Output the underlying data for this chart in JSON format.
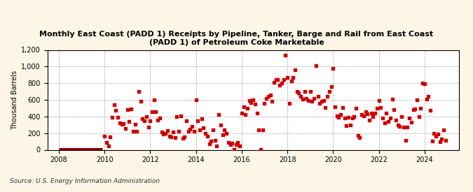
{
  "title": "Monthly East Coast (PADD 1) Receipts by Pipeline, Tanker, Barge and Rail from East Coast\n(PADD 1) of Petroleum Coke Marketable",
  "ylabel": "Thousand Barrels",
  "source": "Source: U.S. Energy Information Administration",
  "background_color": "#fdf5e6",
  "plot_bg_color": "#ffffff",
  "marker_color": "#cc0000",
  "bar_color": "#8b0000",
  "ylim": [
    0,
    1200
  ],
  "yticks": [
    0,
    200,
    400,
    600,
    800,
    1000,
    1200
  ],
  "ytick_labels": [
    "0",
    "200",
    "400",
    "600",
    "800",
    "1,000",
    "1,200"
  ],
  "xticks": [
    2008,
    2010,
    2012,
    2014,
    2016,
    2018,
    2020,
    2022,
    2024
  ],
  "xlim_start": 2007.5,
  "xlim_end": 2025.5,
  "data": {
    "2008-01": 0,
    "2008-02": 0,
    "2008-03": 0,
    "2008-04": 0,
    "2008-05": 0,
    "2008-06": 0,
    "2008-07": 0,
    "2008-08": 0,
    "2008-09": 0,
    "2008-10": 0,
    "2008-11": 0,
    "2008-12": 0,
    "2009-01": 0,
    "2009-02": 0,
    "2009-03": 0,
    "2009-04": 0,
    "2009-05": 0,
    "2009-06": 0,
    "2009-07": 0,
    "2009-08": 0,
    "2009-09": 0,
    "2009-10": 0,
    "2009-11": 0,
    "2009-12": 0,
    "2010-01": 165,
    "2010-02": 90,
    "2010-03": 50,
    "2010-04": 155,
    "2010-05": 390,
    "2010-06": 540,
    "2010-07": 470,
    "2010-08": 390,
    "2010-09": 325,
    "2010-10": 305,
    "2010-11": 315,
    "2010-12": 260,
    "2011-01": 480,
    "2011-02": 340,
    "2011-03": 495,
    "2011-04": 225,
    "2011-05": 305,
    "2011-06": 220,
    "2011-07": 700,
    "2011-08": 580,
    "2011-09": 370,
    "2011-10": 350,
    "2011-11": 400,
    "2011-12": 270,
    "2012-01": 350,
    "2012-02": 460,
    "2012-03": 600,
    "2012-04": 455,
    "2012-05": 360,
    "2012-06": 380,
    "2012-07": 215,
    "2012-08": 190,
    "2012-09": 200,
    "2012-10": 230,
    "2012-11": 165,
    "2012-12": 155,
    "2013-01": 210,
    "2013-02": 150,
    "2013-03": 400,
    "2013-04": 220,
    "2013-05": 410,
    "2013-06": 140,
    "2013-07": 155,
    "2013-08": 350,
    "2013-09": 220,
    "2013-10": 250,
    "2013-11": 280,
    "2013-12": 220,
    "2014-01": 600,
    "2014-02": 345,
    "2014-03": 240,
    "2014-04": 375,
    "2014-05": 265,
    "2014-06": 195,
    "2014-07": 165,
    "2014-08": 75,
    "2014-09": 105,
    "2014-10": 235,
    "2014-11": 110,
    "2014-12": 50,
    "2015-01": 420,
    "2015-02": 300,
    "2015-03": 180,
    "2015-04": 235,
    "2015-05": 195,
    "2015-06": 90,
    "2015-07": 60,
    "2015-08": 80,
    "2015-09": 5,
    "2015-10": 65,
    "2015-11": 90,
    "2015-12": 50,
    "2016-01": 440,
    "2016-02": 520,
    "2016-03": 420,
    "2016-04": 500,
    "2016-05": 590,
    "2016-06": 570,
    "2016-07": 600,
    "2016-08": 550,
    "2016-09": 440,
    "2016-10": 240,
    "2016-11": 5,
    "2016-12": 240,
    "2017-01": 560,
    "2017-02": 620,
    "2017-03": 640,
    "2017-04": 660,
    "2017-05": 580,
    "2017-06": 810,
    "2017-07": 840,
    "2017-08": 840,
    "2017-09": 775,
    "2017-10": 800,
    "2017-11": 840,
    "2017-12": 1140,
    "2018-01": 870,
    "2018-02": 560,
    "2018-03": 830,
    "2018-04": 870,
    "2018-05": 960,
    "2018-06": 700,
    "2018-07": 680,
    "2018-08": 640,
    "2018-09": 610,
    "2018-10": 700,
    "2018-11": 620,
    "2018-12": 590,
    "2019-01": 700,
    "2019-02": 580,
    "2019-03": 620,
    "2019-04": 1010,
    "2019-05": 640,
    "2019-06": 560,
    "2019-07": 580,
    "2019-08": 590,
    "2019-09": 510,
    "2019-10": 640,
    "2019-11": 700,
    "2019-12": 760,
    "2020-01": 980,
    "2020-02": 520,
    "2020-03": 405,
    "2020-04": 390,
    "2020-05": 420,
    "2020-06": 510,
    "2020-07": 380,
    "2020-08": 290,
    "2020-09": 390,
    "2020-10": 300,
    "2020-11": 385,
    "2020-12": 395,
    "2021-01": 500,
    "2021-02": 175,
    "2021-03": 150,
    "2021-04": 420,
    "2021-05": 405,
    "2021-06": 460,
    "2021-07": 430,
    "2021-08": 360,
    "2021-09": 440,
    "2021-10": 400,
    "2021-11": 440,
    "2021-12": 500,
    "2022-01": 590,
    "2022-02": 510,
    "2022-03": 380,
    "2022-04": 320,
    "2022-05": 440,
    "2022-06": 340,
    "2022-07": 380,
    "2022-08": 610,
    "2022-09": 480,
    "2022-10": 360,
    "2022-11": 300,
    "2022-12": 285,
    "2023-01": 400,
    "2023-02": 275,
    "2023-03": 115,
    "2023-04": 270,
    "2023-05": 385,
    "2023-06": 330,
    "2023-07": 480,
    "2023-08": 490,
    "2023-09": 600,
    "2023-10": 400,
    "2023-11": 500,
    "2023-12": 800,
    "2024-01": 790,
    "2024-02": 610,
    "2024-03": 640,
    "2024-04": 470,
    "2024-05": 105,
    "2024-06": 200,
    "2024-07": 160,
    "2024-08": 185,
    "2024-09": 95,
    "2024-10": 130,
    "2024-11": 240,
    "2024-12": 110
  }
}
